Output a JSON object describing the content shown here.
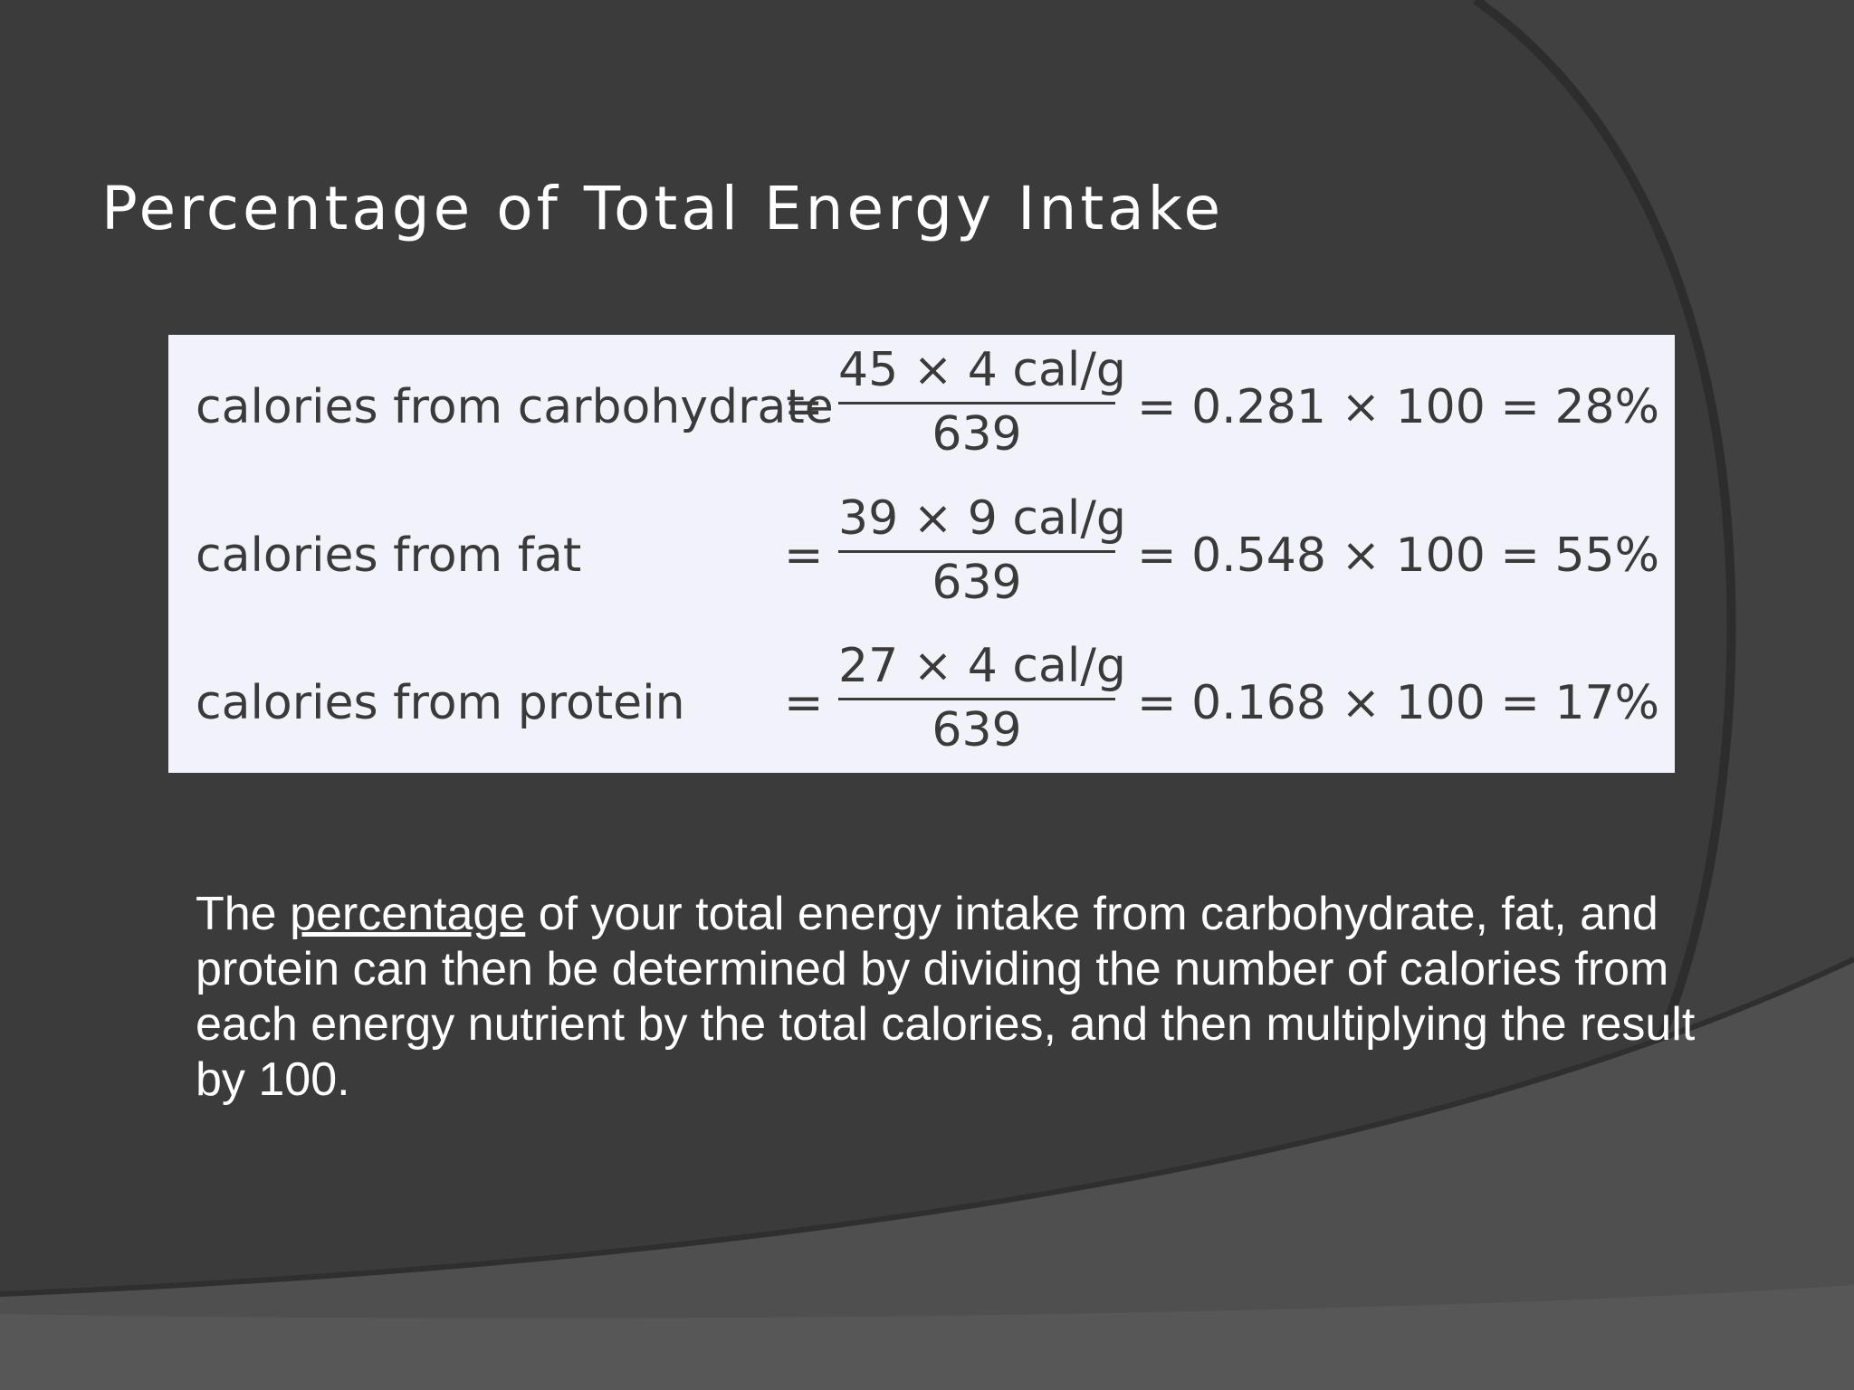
{
  "slide": {
    "title": "Percentage of Total Energy Intake",
    "background_color": "#3b3b3c",
    "text_color": "#ffffff"
  },
  "equations": [
    {
      "label": "calories from carbohydrate",
      "equals": "=",
      "numerator": "45 × 4 cal/g",
      "denominator": "639",
      "result": "= 0.281 × 100 = 28%"
    },
    {
      "label": "calories from fat",
      "equals": "=",
      "numerator": "39 × 9 cal/g",
      "denominator": "639",
      "result": "= 0.548 × 100 = 55%"
    },
    {
      "label": "calories from protein",
      "equals": "=",
      "numerator": "27 × 4 cal/g",
      "denominator": "639",
      "result": "= 0.168 × 100 = 17%"
    }
  ],
  "body": {
    "lead": "The ",
    "link": "percentage",
    "rest": " of your total energy intake from carbohydrate, fat, and protein can then be determined by dividing the number of calories from each energy nutrient by the total calories, and then multiplying the result by 100."
  }
}
